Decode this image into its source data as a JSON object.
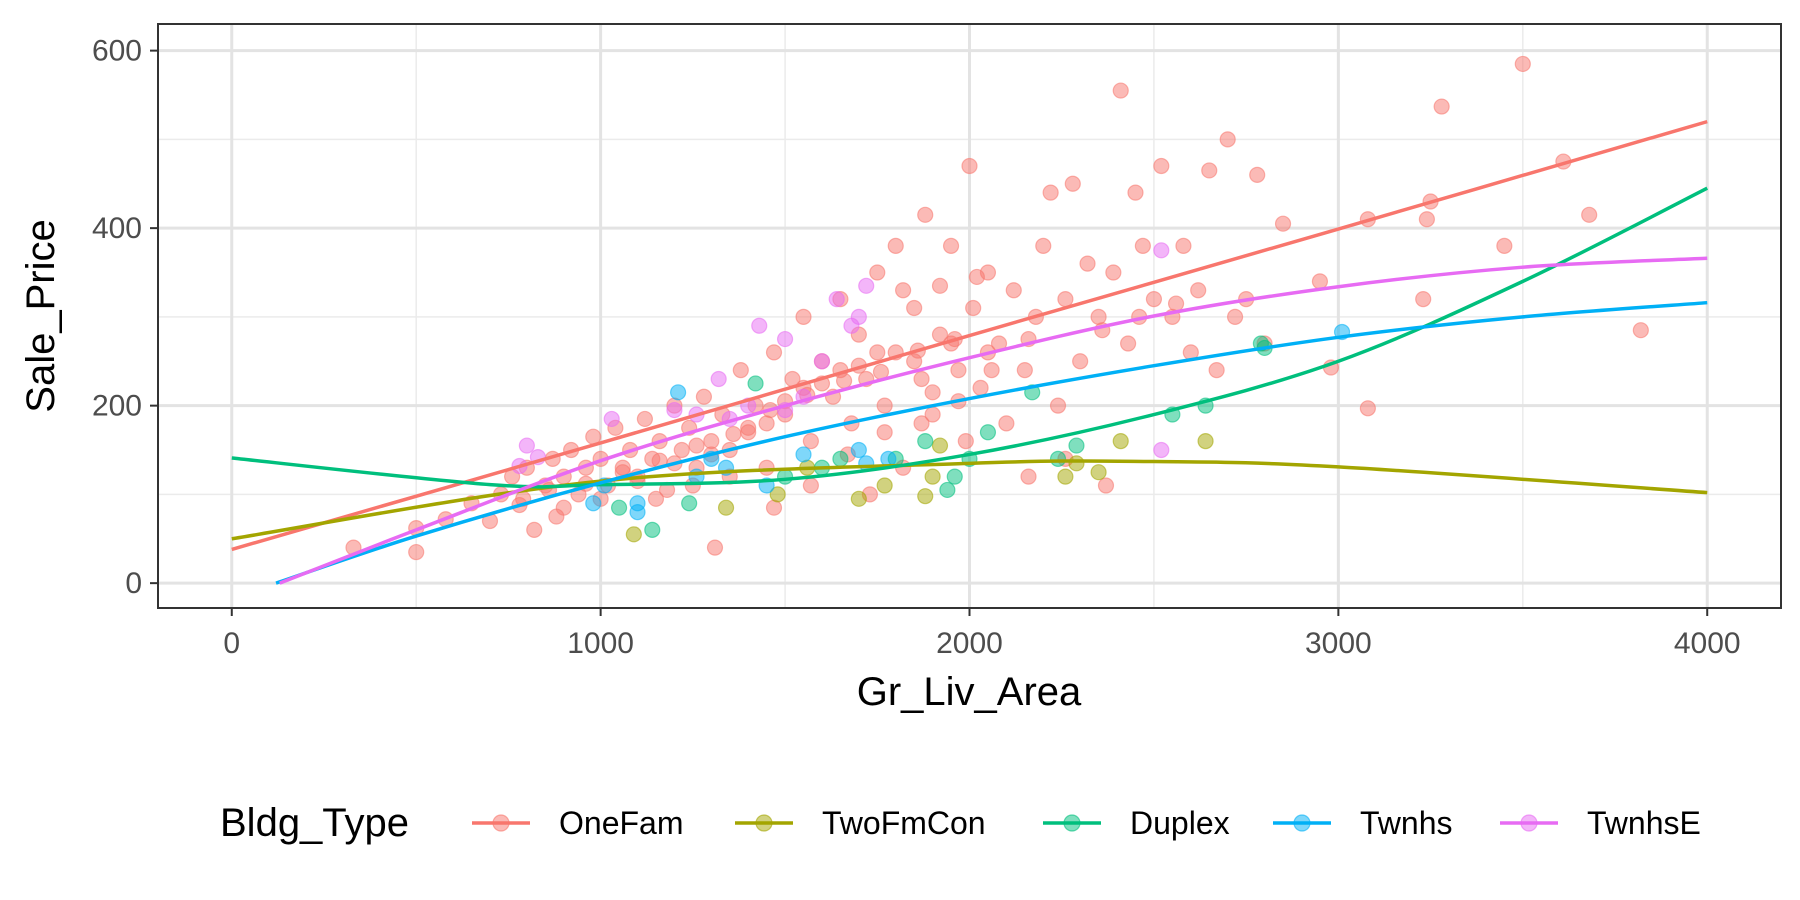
{
  "chart_data": {
    "type": "scatter",
    "title": "",
    "xlabel": "Gr_Liv_Area",
    "ylabel": "Sale_Price",
    "xlim": [
      -200,
      4200
    ],
    "ylim": [
      -28,
      630
    ],
    "x_ticks": [
      0,
      1000,
      2000,
      3000,
      4000
    ],
    "x_tick_labels": [
      "0",
      "1000",
      "2000",
      "3000",
      "4000"
    ],
    "y_ticks": [
      0,
      200,
      400,
      600
    ],
    "y_tick_labels": [
      "0",
      "200",
      "400",
      "600"
    ],
    "grid": true,
    "legend": {
      "title": "Bldg_Type",
      "position": "bottom"
    },
    "series": [
      {
        "name": "OneFam",
        "color": "#F8766D",
        "points": [
          [
            330,
            40
          ],
          [
            500,
            35
          ],
          [
            500,
            62
          ],
          [
            580,
            72
          ],
          [
            650,
            90
          ],
          [
            700,
            70
          ],
          [
            730,
            100
          ],
          [
            760,
            120
          ],
          [
            790,
            95
          ],
          [
            800,
            130
          ],
          [
            820,
            60
          ],
          [
            850,
            110
          ],
          [
            870,
            140
          ],
          [
            880,
            75
          ],
          [
            900,
            120
          ],
          [
            920,
            150
          ],
          [
            940,
            100
          ],
          [
            960,
            130
          ],
          [
            980,
            165
          ],
          [
            1000,
            140
          ],
          [
            1020,
            110
          ],
          [
            1040,
            175
          ],
          [
            1060,
            130
          ],
          [
            1080,
            150
          ],
          [
            1100,
            120
          ],
          [
            1120,
            185
          ],
          [
            1140,
            140
          ],
          [
            1160,
            160
          ],
          [
            1180,
            105
          ],
          [
            1200,
            200
          ],
          [
            1220,
            150
          ],
          [
            1240,
            175
          ],
          [
            1260,
            130
          ],
          [
            1280,
            210
          ],
          [
            1300,
            160
          ],
          [
            1310,
            40
          ],
          [
            1330,
            190
          ],
          [
            1350,
            120
          ],
          [
            1380,
            240
          ],
          [
            1400,
            170
          ],
          [
            1420,
            200
          ],
          [
            1450,
            130
          ],
          [
            1470,
            260
          ],
          [
            1500,
            190
          ],
          [
            1520,
            230
          ],
          [
            1550,
            300
          ],
          [
            1570,
            160
          ],
          [
            1600,
            250
          ],
          [
            1630,
            210
          ],
          [
            1650,
            320
          ],
          [
            1680,
            180
          ],
          [
            1700,
            280
          ],
          [
            1720,
            230
          ],
          [
            1730,
            100
          ],
          [
            1750,
            350
          ],
          [
            1770,
            200
          ],
          [
            1800,
            260
          ],
          [
            1800,
            380
          ],
          [
            1820,
            130
          ],
          [
            1850,
            310
          ],
          [
            1870,
            230
          ],
          [
            1880,
            415
          ],
          [
            1900,
            190
          ],
          [
            1920,
            280
          ],
          [
            1950,
            380
          ],
          [
            1970,
            240
          ],
          [
            1990,
            160
          ],
          [
            2000,
            470
          ],
          [
            2010,
            310
          ],
          [
            2030,
            220
          ],
          [
            2050,
            350
          ],
          [
            2080,
            270
          ],
          [
            2100,
            180
          ],
          [
            2120,
            330
          ],
          [
            2150,
            240
          ],
          [
            2180,
            300
          ],
          [
            2200,
            380
          ],
          [
            2220,
            440
          ],
          [
            2240,
            200
          ],
          [
            2260,
            320
          ],
          [
            2280,
            450
          ],
          [
            2300,
            250
          ],
          [
            2320,
            360
          ],
          [
            2350,
            300
          ],
          [
            2370,
            110
          ],
          [
            2390,
            350
          ],
          [
            2410,
            555
          ],
          [
            2430,
            270
          ],
          [
            2450,
            440
          ],
          [
            2470,
            380
          ],
          [
            2500,
            320
          ],
          [
            2520,
            470
          ],
          [
            2550,
            300
          ],
          [
            2580,
            380
          ],
          [
            2600,
            260
          ],
          [
            2620,
            330
          ],
          [
            2650,
            465
          ],
          [
            2670,
            240
          ],
          [
            2700,
            500
          ],
          [
            2720,
            300
          ],
          [
            2750,
            320
          ],
          [
            2780,
            460
          ],
          [
            2800,
            270
          ],
          [
            2850,
            405
          ],
          [
            2950,
            340
          ],
          [
            2980,
            243
          ],
          [
            3080,
            410
          ],
          [
            3080,
            197
          ],
          [
            3230,
            320
          ],
          [
            3240,
            410
          ],
          [
            3250,
            430
          ],
          [
            3280,
            537
          ],
          [
            3450,
            380
          ],
          [
            3500,
            585
          ],
          [
            3610,
            475
          ],
          [
            3680,
            415
          ],
          [
            3820,
            285
          ],
          [
            1150,
            95
          ],
          [
            1250,
            110
          ],
          [
            1350,
            150
          ],
          [
            1450,
            180
          ],
          [
            1550,
            220
          ],
          [
            1650,
            240
          ],
          [
            1750,
            260
          ],
          [
            1850,
            250
          ],
          [
            1950,
            270
          ],
          [
            2050,
            260
          ],
          [
            900,
            85
          ],
          [
            1000,
            95
          ],
          [
            1100,
            115
          ],
          [
            1200,
            135
          ],
          [
            1300,
            145
          ],
          [
            1400,
            175
          ],
          [
            1500,
            205
          ],
          [
            1600,
            225
          ],
          [
            1700,
            245
          ],
          [
            1900,
            215
          ],
          [
            2060,
            240
          ],
          [
            2160,
            275
          ],
          [
            2360,
            285
          ],
          [
            2460,
            300
          ],
          [
            2560,
            315
          ],
          [
            780,
            88
          ],
          [
            860,
            105
          ],
          [
            960,
            112
          ],
          [
            1060,
            125
          ],
          [
            1160,
            138
          ],
          [
            1260,
            155
          ],
          [
            1360,
            168
          ],
          [
            1460,
            195
          ],
          [
            1560,
            212
          ],
          [
            1660,
            228
          ],
          [
            1760,
            238
          ],
          [
            1860,
            262
          ],
          [
            1960,
            275
          ],
          [
            2260,
            140
          ],
          [
            2160,
            120
          ],
          [
            1820,
            330
          ],
          [
            1920,
            335
          ],
          [
            2020,
            345
          ],
          [
            1470,
            85
          ],
          [
            1570,
            110
          ],
          [
            1670,
            145
          ],
          [
            1770,
            170
          ],
          [
            1870,
            180
          ],
          [
            1970,
            205
          ]
        ]
      },
      {
        "name": "TwoFmCon",
        "color": "#A3A500",
        "points": [
          [
            1090,
            55
          ],
          [
            1340,
            85
          ],
          [
            1700,
            95
          ],
          [
            1770,
            110
          ],
          [
            1880,
            98
          ],
          [
            1900,
            120
          ],
          [
            1920,
            155
          ],
          [
            2260,
            120
          ],
          [
            2290,
            135
          ],
          [
            2410,
            160
          ],
          [
            2350,
            125
          ],
          [
            2640,
            160
          ],
          [
            1480,
            100
          ],
          [
            1560,
            130
          ]
        ]
      },
      {
        "name": "Duplex",
        "color": "#00BF7D",
        "points": [
          [
            1050,
            85
          ],
          [
            1140,
            60
          ],
          [
            1240,
            90
          ],
          [
            1420,
            225
          ],
          [
            1650,
            140
          ],
          [
            1800,
            140
          ],
          [
            1880,
            160
          ],
          [
            1940,
            105
          ],
          [
            1960,
            120
          ],
          [
            2000,
            140
          ],
          [
            2050,
            170
          ],
          [
            2170,
            215
          ],
          [
            2240,
            140
          ],
          [
            2290,
            155
          ],
          [
            2550,
            190
          ],
          [
            2640,
            200
          ],
          [
            2790,
            270
          ],
          [
            2800,
            265
          ],
          [
            1500,
            120
          ],
          [
            1600,
            130
          ]
        ]
      },
      {
        "name": "Twnhs",
        "color": "#00B0F6",
        "points": [
          [
            980,
            90
          ],
          [
            1010,
            110
          ],
          [
            1100,
            80
          ],
          [
            1100,
            90
          ],
          [
            1210,
            215
          ],
          [
            1260,
            120
          ],
          [
            1300,
            140
          ],
          [
            1340,
            130
          ],
          [
            1450,
            110
          ],
          [
            1700,
            150
          ],
          [
            1720,
            135
          ],
          [
            1780,
            140
          ],
          [
            3010,
            283
          ],
          [
            1550,
            145
          ]
        ]
      },
      {
        "name": "TwnhsE",
        "color": "#E76BF3",
        "points": [
          [
            780,
            132
          ],
          [
            800,
            155
          ],
          [
            830,
            142
          ],
          [
            1030,
            185
          ],
          [
            1200,
            195
          ],
          [
            1320,
            230
          ],
          [
            1350,
            185
          ],
          [
            1430,
            290
          ],
          [
            1500,
            275
          ],
          [
            1640,
            320
          ],
          [
            1700,
            300
          ],
          [
            1720,
            335
          ],
          [
            1500,
            195
          ],
          [
            1550,
            210
          ],
          [
            1260,
            190
          ],
          [
            2520,
            375
          ],
          [
            2520,
            150
          ],
          [
            1400,
            200
          ],
          [
            1600,
            250
          ],
          [
            1680,
            290
          ]
        ]
      }
    ],
    "fit_lines": [
      {
        "name": "OneFam",
        "color": "#F8766D",
        "x": [
          0,
          1000,
          2000,
          3000,
          4000
        ],
        "y": [
          38,
          158,
          279,
          399,
          520
        ]
      },
      {
        "name": "TwoFmCon",
        "color": "#A3A500",
        "x": [
          0,
          1000,
          2000,
          2500,
          3000,
          4000
        ],
        "y": [
          50,
          115,
          135,
          137,
          131,
          102
        ]
      },
      {
        "name": "Duplex",
        "color": "#00BF7D",
        "x": [
          0,
          700,
          1000,
          1500,
          2000,
          2500,
          3000,
          3500,
          4000
        ],
        "y": [
          141,
          111,
          111,
          117,
          145,
          190,
          250,
          340,
          445
        ]
      },
      {
        "name": "Twnhs",
        "color": "#00B0F6",
        "x": [
          120,
          500,
          1000,
          1500,
          2000,
          2500,
          3000,
          3500,
          4000
        ],
        "y": [
          0,
          53,
          113,
          165,
          208,
          245,
          277,
          300,
          316
        ]
      },
      {
        "name": "TwnhsE",
        "color": "#E76BF3",
        "x": [
          130,
          500,
          1000,
          1500,
          2000,
          2500,
          3000,
          3500,
          4000
        ],
        "y": [
          0,
          60,
          138,
          200,
          254,
          301,
          334,
          356,
          366
        ]
      }
    ]
  }
}
